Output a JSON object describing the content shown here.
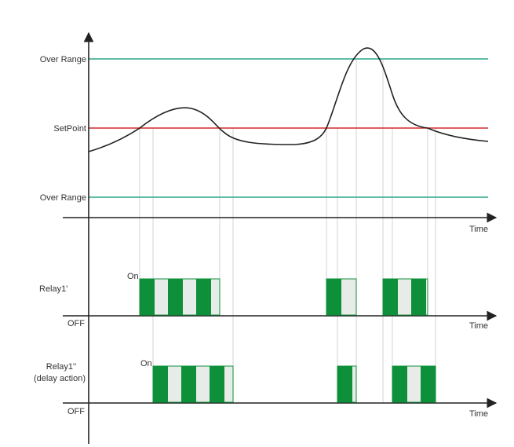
{
  "labels": {
    "over_range_top": "Over Range",
    "setpoint": "SetPoint",
    "over_range_bottom": "Over Range",
    "time_1": "Time",
    "time_2": "Time",
    "time_3": "Time",
    "relay1_prime": "Relay1'",
    "relay1_double_line1": "Relay1''",
    "relay1_double_line2": "(delay action)",
    "on_1": "On",
    "on_2": "On",
    "off_1": "OFF",
    "off_2": "OFF"
  },
  "colors": {
    "over_range_line": "#2aa58a",
    "setpoint_line": "#d42b2b",
    "curve": "#222222",
    "axis": "#222222",
    "relay_on_fill": "#0e8f3a",
    "relay_gap_fill": "#e8ece8",
    "guide_line": "#c8c8c8"
  }
}
